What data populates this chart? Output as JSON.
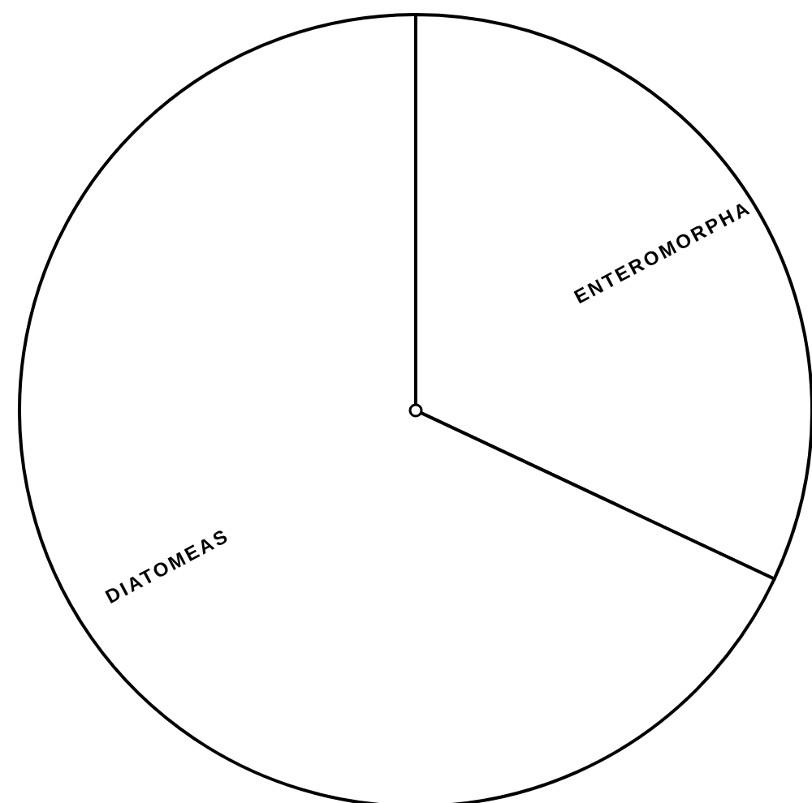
{
  "chart_data": {
    "type": "pie",
    "categories": [
      "ENTEROMORPHA",
      "DIATOMEAS"
    ],
    "values": [
      32,
      68
    ],
    "colors": [
      "#ffffff",
      "#ffffff"
    ]
  }
}
